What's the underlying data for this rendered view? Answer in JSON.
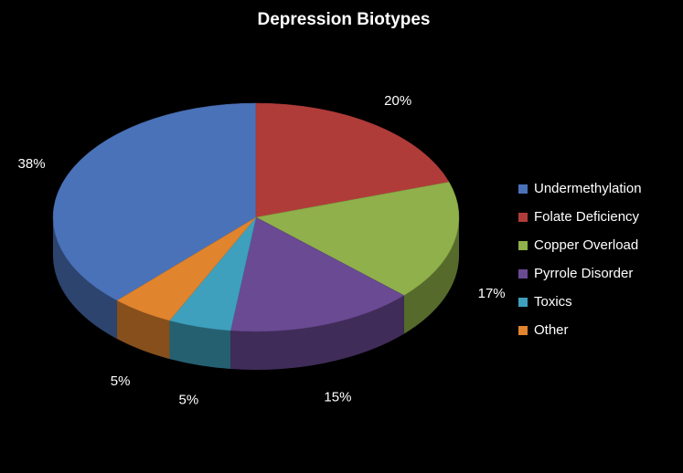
{
  "chart_data": {
    "type": "pie3d",
    "title": "Depression Biotypes",
    "categories": [
      "Undermethylation",
      "Folate Deficiency",
      "Copper Overload",
      "Pyrrole Disorder",
      "Toxics",
      "Other"
    ],
    "values": [
      38,
      20,
      17,
      15,
      5,
      5
    ],
    "value_labels": [
      "38%",
      "20%",
      "17%",
      "15%",
      "5%",
      "5%"
    ],
    "colors": [
      "#4a72b8",
      "#b03c3a",
      "#8fb04a",
      "#6a4a93",
      "#3ea0bd",
      "#e0842e"
    ],
    "legend": "right"
  }
}
